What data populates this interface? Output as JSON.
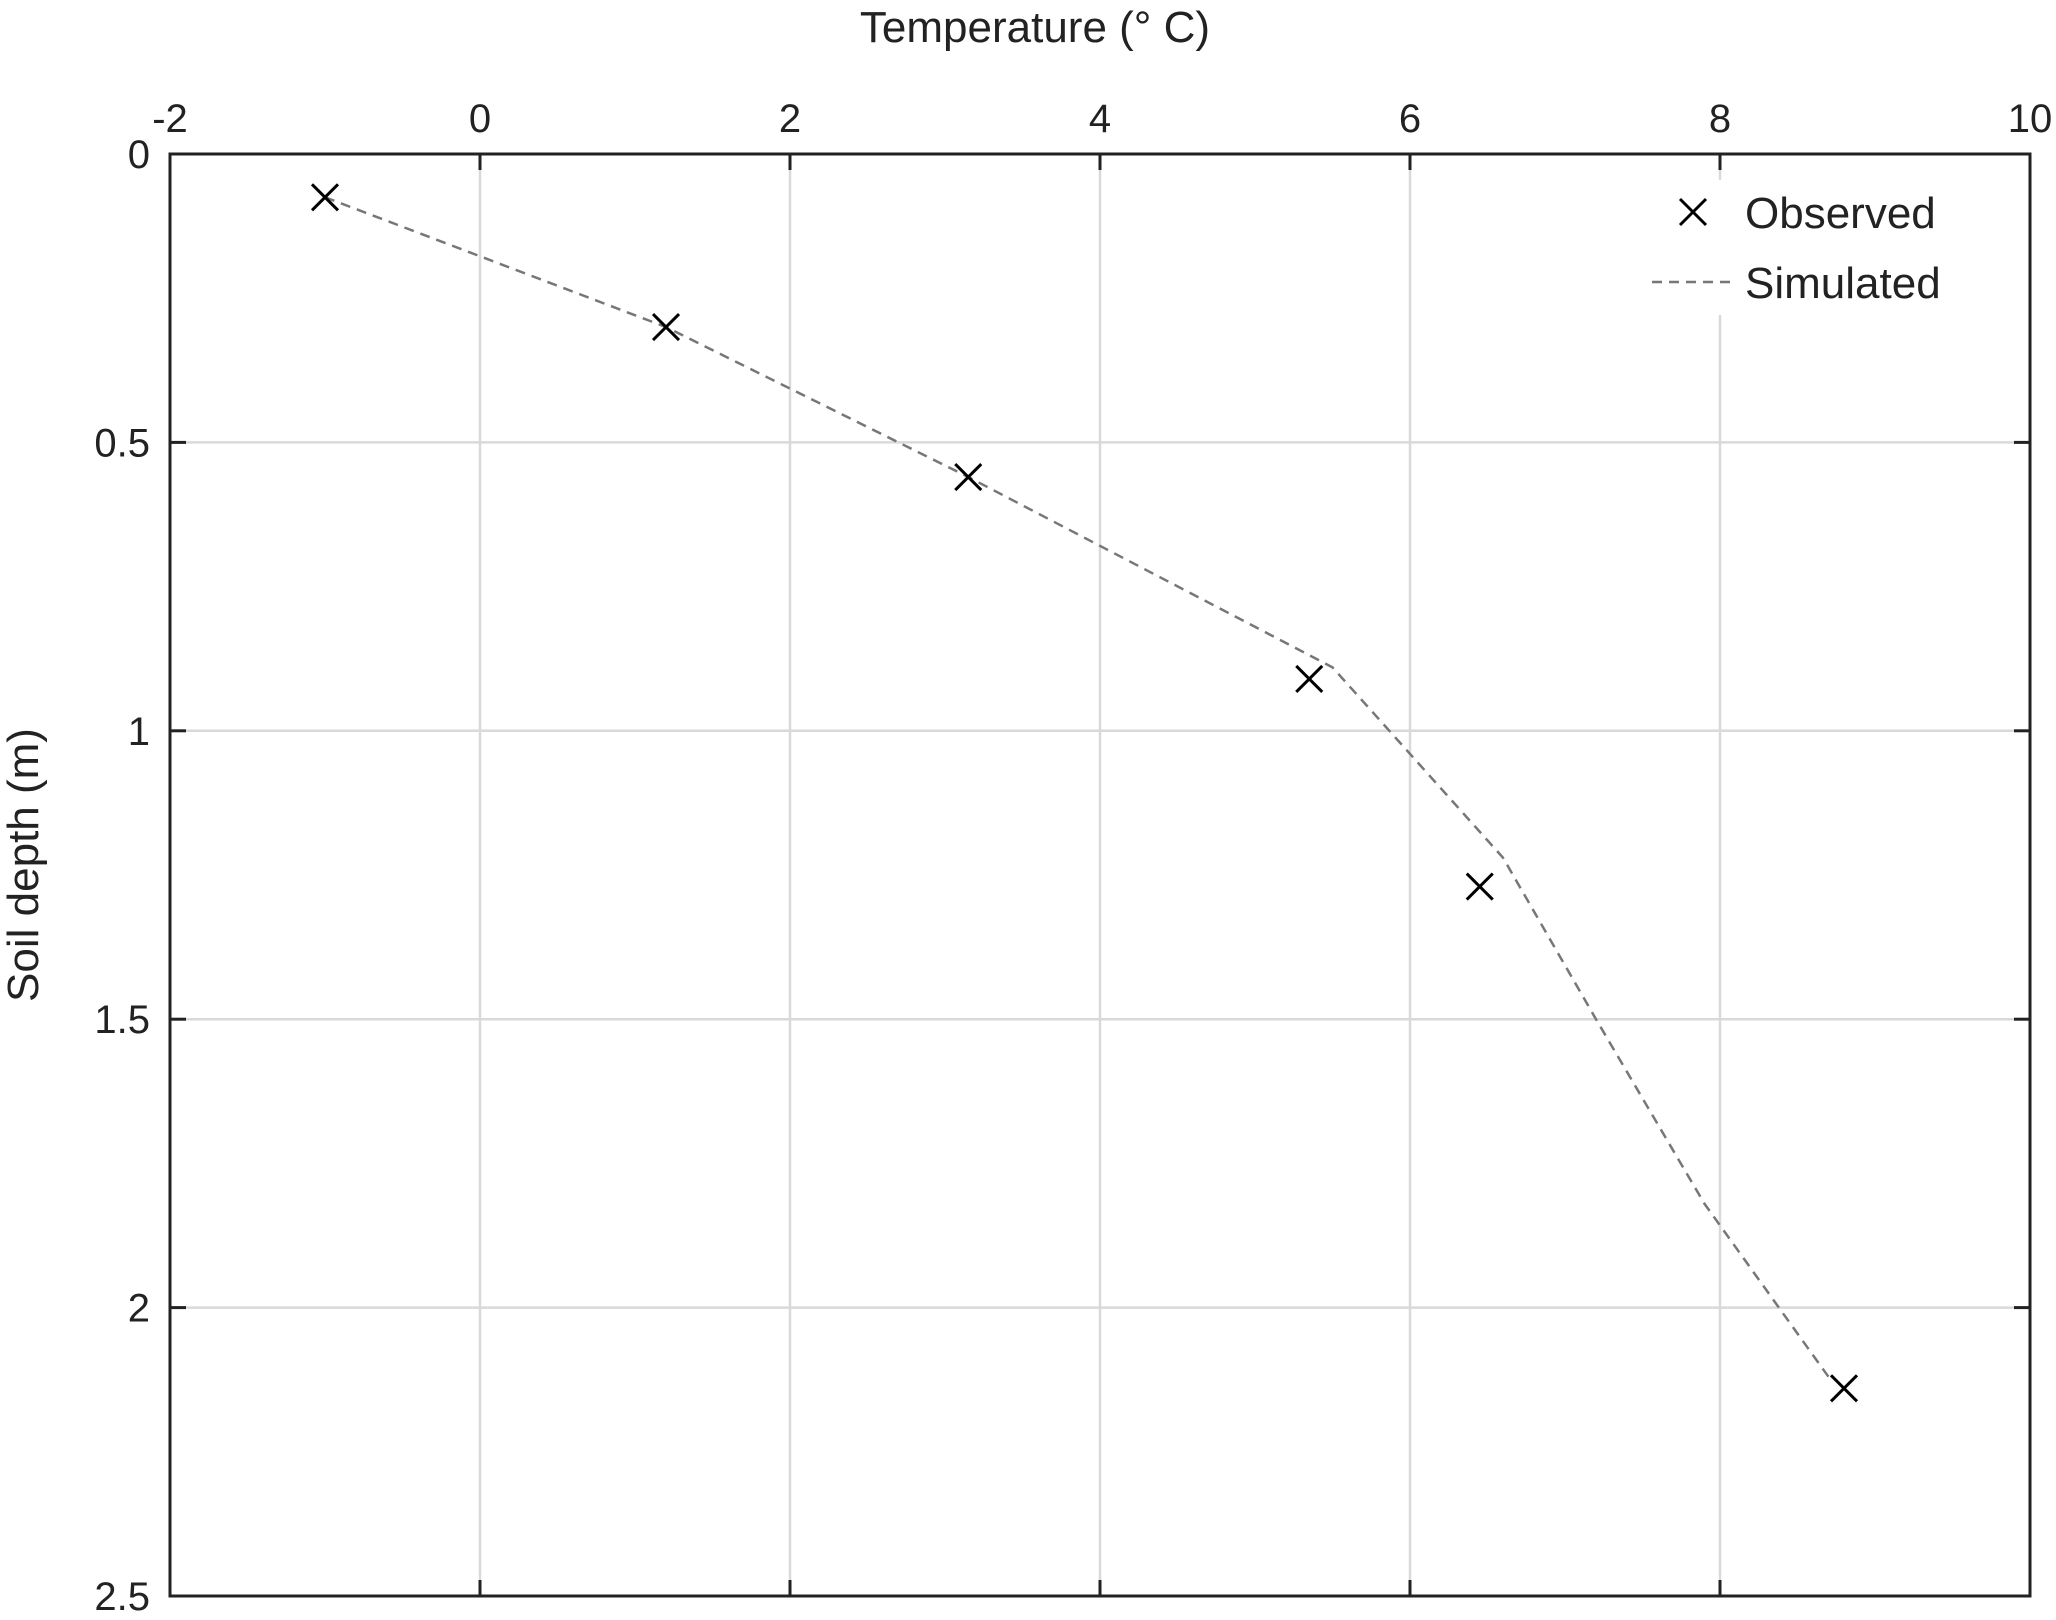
{
  "chart_data": {
    "type": "line",
    "title": "",
    "xlabel": "Temperature (° C)",
    "ylabel": "Soil depth (m)",
    "xlim": [
      -2,
      10
    ],
    "ylim": [
      0,
      2.5
    ],
    "y_reversed": true,
    "x_axis_location": "top",
    "xticks": [
      "-2",
      "0",
      "2",
      "4",
      "6",
      "8",
      "10"
    ],
    "yticks": [
      "0",
      "0.5",
      "1",
      "1.5",
      "2",
      "2.5"
    ],
    "grid": true,
    "legend": {
      "placement": "top-right",
      "entries": [
        "Observed",
        "Simulated"
      ]
    },
    "series": [
      {
        "name": "Observed",
        "marker": "x",
        "color": "#000000",
        "points": [
          {
            "temperature": -1.0,
            "depth": 0.075
          },
          {
            "temperature": 1.2,
            "depth": 0.3
          },
          {
            "temperature": 3.15,
            "depth": 0.56
          },
          {
            "temperature": 5.35,
            "depth": 0.91
          },
          {
            "temperature": 6.45,
            "depth": 1.27
          },
          {
            "temperature": 8.8,
            "depth": 2.14
          }
        ]
      },
      {
        "name": "Simulated",
        "line_style": "dashed",
        "color": "#777777",
        "points": [
          {
            "temperature": -1.0,
            "depth": 0.075
          },
          {
            "temperature": 1.2,
            "depth": 0.3
          },
          {
            "temperature": 3.15,
            "depth": 0.56
          },
          {
            "temperature": 5.5,
            "depth": 0.89
          },
          {
            "temperature": 6.6,
            "depth": 1.22
          },
          {
            "temperature": 7.2,
            "depth": 1.5
          },
          {
            "temperature": 7.9,
            "depth": 1.82
          },
          {
            "temperature": 8.7,
            "depth": 2.12
          }
        ]
      }
    ]
  }
}
